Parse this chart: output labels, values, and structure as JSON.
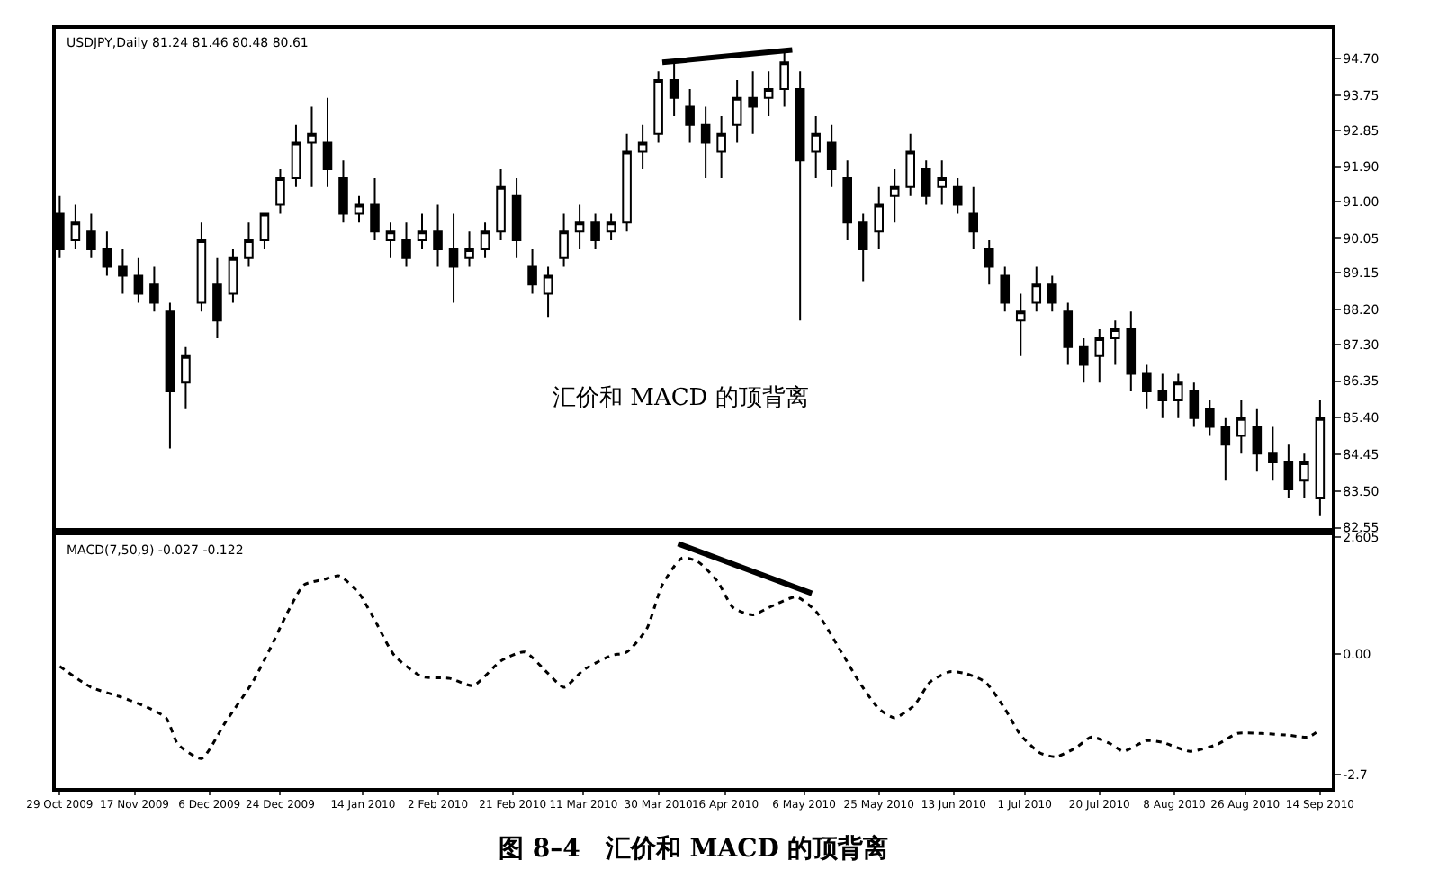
{
  "chart_data": [
    {
      "type": "candlestick",
      "annotations": [
        "USDJPY,Daily 81.24 81.46 80.48 80.61",
        "汇价和 MACD 的顶背离"
      ],
      "x": [
        "2009-10-29",
        "2009-11-02",
        "2009-11-06",
        "2009-11-10",
        "2009-11-14",
        "2009-11-18",
        "2009-11-22",
        "2009-11-26",
        "2009-11-30",
        "2009-12-04",
        "2009-12-08",
        "2009-12-12",
        "2009-12-16",
        "2009-12-20",
        "2009-12-24",
        "2009-12-28",
        "2010-01-01",
        "2010-01-05",
        "2010-01-09",
        "2010-01-13",
        "2010-01-17",
        "2010-01-21",
        "2010-01-25",
        "2010-01-29",
        "2010-02-02",
        "2010-02-06",
        "2010-02-10",
        "2010-02-14",
        "2010-02-18",
        "2010-02-22",
        "2010-02-26",
        "2010-03-02",
        "2010-03-06",
        "2010-03-10",
        "2010-03-14",
        "2010-03-18",
        "2010-03-22",
        "2010-03-26",
        "2010-03-30",
        "2010-04-03",
        "2010-04-07",
        "2010-04-11",
        "2010-04-15",
        "2010-04-19",
        "2010-04-23",
        "2010-04-27",
        "2010-05-01",
        "2010-05-05",
        "2010-05-09",
        "2010-05-13",
        "2010-05-17",
        "2010-05-21",
        "2010-05-25",
        "2010-05-29",
        "2010-06-02",
        "2010-06-06",
        "2010-06-10",
        "2010-06-14",
        "2010-06-18",
        "2010-06-22",
        "2010-06-26",
        "2010-06-30",
        "2010-07-04",
        "2010-07-08",
        "2010-07-12",
        "2010-07-16",
        "2010-07-20",
        "2010-07-24",
        "2010-07-28",
        "2010-08-01",
        "2010-08-05",
        "2010-08-09",
        "2010-08-13",
        "2010-08-17",
        "2010-08-21",
        "2010-08-25",
        "2010-08-29",
        "2010-09-02",
        "2010-09-06",
        "2010-09-10",
        "2010-09-14"
      ],
      "ohlc": [
        [
          90.69,
          91.15,
          89.54,
          89.77
        ],
        [
          90.0,
          90.92,
          89.77,
          90.46
        ],
        [
          90.23,
          90.69,
          89.54,
          89.77
        ],
        [
          89.77,
          90.23,
          89.08,
          89.31
        ],
        [
          89.31,
          89.77,
          88.61,
          89.08
        ],
        [
          89.08,
          89.54,
          88.38,
          88.61
        ],
        [
          88.85,
          89.31,
          88.15,
          88.38
        ],
        [
          88.15,
          88.38,
          84.6,
          86.08
        ],
        [
          86.31,
          87.23,
          85.62,
          87.0
        ],
        [
          88.38,
          90.46,
          88.15,
          90.0
        ],
        [
          88.85,
          89.54,
          87.46,
          87.92
        ],
        [
          88.61,
          89.77,
          88.38,
          89.54
        ],
        [
          89.54,
          90.46,
          89.31,
          90.0
        ],
        [
          90.0,
          90.69,
          89.77,
          90.69
        ],
        [
          90.92,
          91.84,
          90.69,
          91.61
        ],
        [
          91.61,
          92.99,
          91.38,
          92.53
        ],
        [
          92.53,
          93.46,
          91.38,
          92.76
        ],
        [
          92.53,
          93.69,
          91.38,
          91.84
        ],
        [
          91.61,
          92.07,
          90.46,
          90.69
        ],
        [
          90.69,
          91.15,
          90.46,
          90.92
        ],
        [
          90.92,
          91.61,
          90.0,
          90.23
        ],
        [
          90.0,
          90.46,
          89.54,
          90.23
        ],
        [
          90.0,
          90.46,
          89.31,
          89.54
        ],
        [
          90.0,
          90.69,
          89.77,
          90.23
        ],
        [
          90.23,
          90.92,
          89.31,
          89.77
        ],
        [
          89.77,
          90.69,
          88.38,
          89.31
        ],
        [
          89.54,
          90.23,
          89.31,
          89.77
        ],
        [
          89.77,
          90.46,
          89.54,
          90.23
        ],
        [
          90.23,
          91.84,
          90.0,
          91.38
        ],
        [
          91.15,
          91.61,
          89.54,
          90.0
        ],
        [
          89.31,
          89.77,
          88.61,
          88.85
        ],
        [
          88.61,
          89.31,
          88.01,
          89.08
        ],
        [
          89.54,
          90.69,
          89.31,
          90.23
        ],
        [
          90.23,
          90.92,
          89.77,
          90.46
        ],
        [
          90.46,
          90.69,
          89.77,
          90.0
        ],
        [
          90.23,
          90.69,
          90.0,
          90.46
        ],
        [
          90.46,
          92.76,
          90.23,
          92.3
        ],
        [
          92.3,
          92.99,
          91.84,
          92.53
        ],
        [
          92.76,
          94.38,
          92.53,
          94.15
        ],
        [
          94.15,
          94.61,
          93.22,
          93.69
        ],
        [
          93.46,
          93.92,
          92.53,
          92.99
        ],
        [
          92.99,
          93.46,
          91.61,
          92.53
        ],
        [
          92.3,
          93.22,
          91.61,
          92.76
        ],
        [
          92.99,
          94.15,
          92.53,
          93.69
        ],
        [
          93.69,
          94.38,
          92.76,
          93.46
        ],
        [
          93.69,
          94.38,
          93.22,
          93.92
        ],
        [
          93.92,
          94.93,
          93.46,
          94.61
        ],
        [
          93.92,
          94.38,
          87.92,
          92.07
        ],
        [
          92.3,
          93.22,
          91.61,
          92.76
        ],
        [
          92.53,
          92.99,
          91.38,
          91.84
        ],
        [
          91.61,
          92.07,
          90.0,
          90.46
        ],
        [
          90.46,
          90.69,
          88.94,
          89.77
        ],
        [
          90.23,
          91.38,
          89.77,
          90.92
        ],
        [
          91.15,
          91.84,
          90.46,
          91.38
        ],
        [
          91.38,
          92.76,
          91.15,
          92.3
        ],
        [
          91.84,
          92.07,
          90.92,
          91.15
        ],
        [
          91.38,
          92.07,
          90.92,
          91.61
        ],
        [
          91.38,
          91.61,
          90.69,
          90.92
        ],
        [
          90.69,
          91.38,
          89.77,
          90.23
        ],
        [
          89.77,
          90.0,
          88.85,
          89.31
        ],
        [
          89.08,
          89.31,
          88.15,
          88.38
        ],
        [
          87.92,
          88.61,
          87.0,
          88.15
        ],
        [
          88.38,
          89.31,
          88.15,
          88.85
        ],
        [
          88.85,
          89.08,
          88.15,
          88.38
        ],
        [
          88.15,
          88.38,
          86.77,
          87.23
        ],
        [
          87.23,
          87.46,
          86.31,
          86.77
        ],
        [
          87.0,
          87.69,
          86.31,
          87.46
        ],
        [
          87.46,
          87.92,
          86.77,
          87.69
        ],
        [
          87.69,
          88.15,
          86.08,
          86.54
        ],
        [
          86.54,
          86.77,
          85.62,
          86.08
        ],
        [
          86.08,
          86.54,
          85.39,
          85.85
        ],
        [
          85.85,
          86.54,
          85.39,
          86.31
        ],
        [
          86.08,
          86.31,
          85.16,
          85.39
        ],
        [
          85.62,
          85.85,
          84.93,
          85.16
        ],
        [
          85.16,
          85.39,
          83.77,
          84.7
        ],
        [
          84.93,
          85.85,
          84.47,
          85.39
        ],
        [
          85.16,
          85.62,
          84.0,
          84.47
        ],
        [
          84.47,
          85.16,
          83.77,
          84.24
        ],
        [
          84.24,
          84.7,
          83.31,
          83.54
        ],
        [
          83.77,
          84.47,
          83.31,
          84.24
        ],
        [
          83.31,
          85.85,
          82.85,
          85.39
        ]
      ],
      "series": [
        {
          "type": "line",
          "color": "#000000",
          "x": [
            "2010-03-31",
            "2010-05-03"
          ],
          "values": [
            94.61,
            94.93
          ]
        }
      ],
      "xlim": [
        "2009-10-28",
        "2010-09-17"
      ],
      "ylim": [
        82.55,
        95.48
      ],
      "yticks": [
        {
          "value": 94.7,
          "label": "94.70"
        },
        93.75,
        92.85,
        {
          "value": 91.9,
          "label": "91.90"
        },
        {
          "value": 91.0,
          "label": "91.00"
        },
        90.05,
        89.15,
        {
          "value": 88.2,
          "label": "88.20"
        },
        {
          "value": 87.3,
          "label": "87.30"
        },
        86.35,
        {
          "value": 85.4,
          "label": "85.40"
        },
        84.45,
        {
          "value": 83.5,
          "label": "83.50"
        },
        82.55
      ],
      "tick_labels": "y"
    },
    {
      "type": "line",
      "title": "图 8–4　汇价和 MACD 的顶背离",
      "annotations": [
        "MACD(7,50,9) -0.027 -0.122"
      ],
      "series": [
        {
          "color": "#000000",
          "line_style": "dotted",
          "x": [
            "2009-10-29",
            "2009-11-06",
            "2009-11-13",
            "2009-11-19",
            "2009-11-25",
            "2009-11-28",
            "2009-12-04",
            "2009-12-10",
            "2009-12-17",
            "2009-12-21",
            "2009-12-26",
            "2009-12-30",
            "2010-01-04",
            "2010-01-08",
            "2010-01-13",
            "2010-01-17",
            "2010-01-22",
            "2010-01-29",
            "2010-02-05",
            "2010-02-11",
            "2010-02-18",
            "2010-02-24",
            "2010-03-02",
            "2010-03-06",
            "2010-03-11",
            "2010-03-18",
            "2010-03-22",
            "2010-03-27",
            "2010-03-31",
            "2010-04-05",
            "2010-04-09",
            "2010-04-14",
            "2010-04-18",
            "2010-04-23",
            "2010-04-27",
            "2010-05-04",
            "2010-05-09",
            "2010-05-16",
            "2010-05-20",
            "2010-05-25",
            "2010-05-29",
            "2010-06-03",
            "2010-06-07",
            "2010-06-12",
            "2010-06-16",
            "2010-06-21",
            "2010-06-26",
            "2010-06-30",
            "2010-07-05",
            "2010-07-09",
            "2010-07-14",
            "2010-07-18",
            "2010-07-23",
            "2010-07-26",
            "2010-08-01",
            "2010-08-05",
            "2010-08-12",
            "2010-08-19",
            "2010-08-24",
            "2010-08-30",
            "2010-09-06",
            "2010-09-11",
            "2010-09-14"
          ],
          "values": [
            -0.28,
            -0.75,
            -0.95,
            -1.15,
            -1.43,
            -2.02,
            -2.34,
            -1.54,
            -0.63,
            0.04,
            0.95,
            1.54,
            1.66,
            1.74,
            1.35,
            0.75,
            -0.04,
            -0.51,
            -0.55,
            -0.71,
            -0.16,
            0.04,
            -0.44,
            -0.75,
            -0.36,
            -0.04,
            0.04,
            0.55,
            1.54,
            2.14,
            2.06,
            1.62,
            1.03,
            0.87,
            1.03,
            1.27,
            0.95,
            -0.04,
            -0.63,
            -1.23,
            -1.43,
            -1.15,
            -0.63,
            -0.4,
            -0.44,
            -0.63,
            -1.23,
            -1.82,
            -2.22,
            -2.3,
            -2.1,
            -1.86,
            -2.02,
            -2.18,
            -1.94,
            -1.98,
            -2.18,
            -2.02,
            -1.78,
            -1.78,
            -1.82,
            -1.86,
            -1.7
          ]
        },
        {
          "color": "#000000",
          "x": [
            "2010-04-04",
            "2010-05-08"
          ],
          "values": [
            2.46,
            1.35
          ]
        }
      ],
      "xlim": [
        "2009-10-28",
        "2010-09-17"
      ],
      "ylim": [
        -3.0,
        2.65
      ],
      "yticks": [
        2.605,
        {
          "value": 0,
          "label": "0.00"
        },
        -2.7
      ],
      "xticks": [
        {
          "value": "2009-10-29",
          "label": "29 Oct 2009"
        },
        {
          "value": "2009-11-17",
          "label": "17 Nov 2009"
        },
        {
          "value": "2009-12-06",
          "label": "6 Dec 2009"
        },
        {
          "value": "2009-12-24",
          "label": "24 Dec 2009"
        },
        {
          "value": "2010-01-14",
          "label": "14 Jan 2010"
        },
        {
          "value": "2010-02-02",
          "label": "2 Feb 2010"
        },
        {
          "value": "2010-02-21",
          "label": "21 Feb 2010"
        },
        {
          "value": "2010-03-11",
          "label": "11 Mar 2010"
        },
        {
          "value": "2010-03-30",
          "label": "30 Mar 2010"
        },
        {
          "value": "2010-04-16",
          "label": "16 Apr 2010"
        },
        {
          "value": "2010-05-06",
          "label": "6 May 2010"
        },
        {
          "value": "2010-05-25",
          "label": "25 May 2010"
        },
        {
          "value": "2010-06-13",
          "label": "13 Jun 2010"
        },
        {
          "value": "2010-07-01",
          "label": "1 Jul 2010"
        },
        {
          "value": "2010-07-20",
          "label": "20 Jul 2010"
        },
        {
          "value": "2010-08-08",
          "label": "8 Aug 2010"
        },
        {
          "value": "2010-08-26",
          "label": "26 Aug 2010"
        },
        {
          "value": "2010-09-14",
          "label": "14 Sep 2010"
        }
      ]
    }
  ]
}
